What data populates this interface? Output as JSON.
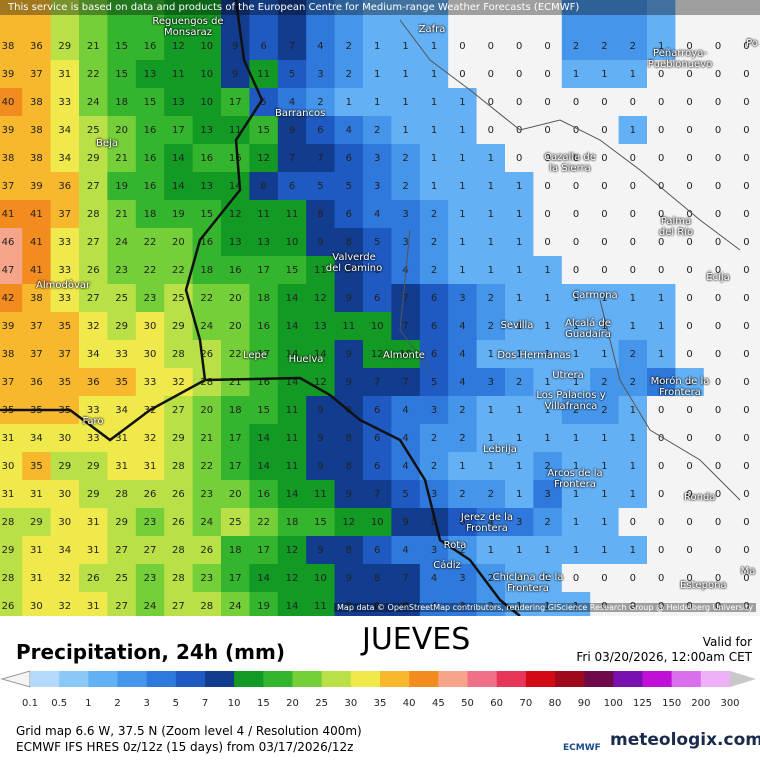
{
  "header": {
    "banner": "This service is based on data and products of the European Centre for Medium-range Weather Forecasts (ECMWF)",
    "attribution": "Map data © OpenStreetMap contributors, rendering GIScience Research Group @ Heidelberg University"
  },
  "map": {
    "places": [
      "Reguengos de Monsaraz",
      "Zafra",
      "Peñarroya-Pueblonuevo",
      "Po",
      "Barrancos",
      "Beja",
      "Cazalla de la Sierra",
      "Palma del Río",
      "Écija",
      "Valverde del Camino",
      "Almodôvar",
      "Carmona",
      "Sevilla",
      "Alcalá de Guadaíra",
      "Dos Hermanas",
      "Lepe",
      "Huelva",
      "Almonte",
      "Utrera",
      "Morón de la Frontera",
      "Los Palacios y Villafranca",
      "Faro",
      "Lebrija",
      "Arcos de la Frontera",
      "Ronda",
      "Jerez de la Frontera",
      "Rota",
      "Cádiz",
      "Chiclana de la Frontera",
      "Estepona",
      "Ma"
    ],
    "grid": [
      [
        38,
        36,
        29,
        21,
        15,
        16,
        12,
        10,
        9,
        6,
        7,
        4,
        2,
        1,
        1,
        1,
        0,
        0,
        0,
        0,
        2,
        2,
        2,
        1,
        0,
        0,
        0
      ],
      [
        39,
        37,
        31,
        22,
        15,
        13,
        11,
        10,
        9,
        11,
        5,
        3,
        2,
        1,
        1,
        1,
        0,
        0,
        0,
        0,
        1,
        1,
        1,
        0,
        0,
        0,
        0
      ],
      [
        40,
        38,
        33,
        24,
        18,
        15,
        13,
        10,
        17,
        5,
        4,
        2,
        1,
        1,
        1,
        1,
        1,
        0,
        0,
        0,
        0,
        0,
        0,
        0,
        0,
        0,
        0
      ],
      [
        39,
        38,
        34,
        25,
        20,
        16,
        17,
        13,
        11,
        15,
        9,
        6,
        4,
        2,
        1,
        1,
        1,
        0,
        0,
        0,
        0,
        0,
        1,
        0,
        0,
        0,
        0
      ],
      [
        38,
        38,
        34,
        29,
        21,
        16,
        14,
        16,
        16,
        12,
        7,
        7,
        6,
        3,
        2,
        1,
        1,
        1,
        0,
        0,
        0,
        0,
        0,
        0,
        0,
        0,
        0
      ],
      [
        37,
        39,
        36,
        27,
        19,
        16,
        14,
        13,
        14,
        8,
        6,
        5,
        5,
        3,
        2,
        1,
        1,
        1,
        1,
        0,
        0,
        0,
        0,
        0,
        0,
        0,
        0
      ],
      [
        41,
        41,
        37,
        28,
        21,
        18,
        19,
        15,
        12,
        11,
        11,
        8,
        6,
        4,
        3,
        2,
        1,
        1,
        1,
        0,
        0,
        0,
        0,
        0,
        0,
        0,
        0
      ],
      [
        46,
        41,
        33,
        27,
        24,
        22,
        20,
        16,
        13,
        13,
        10,
        9,
        8,
        5,
        3,
        2,
        1,
        1,
        1,
        0,
        0,
        0,
        0,
        0,
        0,
        0,
        0
      ],
      [
        47,
        41,
        33,
        26,
        23,
        22,
        22,
        18,
        16,
        17,
        15,
        11,
        9,
        6,
        4,
        2,
        1,
        1,
        1,
        1,
        0,
        0,
        0,
        0,
        0,
        0,
        0
      ],
      [
        42,
        38,
        33,
        27,
        25,
        23,
        25,
        22,
        20,
        18,
        14,
        12,
        9,
        6,
        7,
        6,
        3,
        2,
        1,
        1,
        1,
        1,
        1,
        1,
        0,
        0,
        0
      ],
      [
        39,
        37,
        35,
        32,
        29,
        30,
        29,
        24,
        20,
        16,
        14,
        13,
        11,
        10,
        7,
        6,
        4,
        2,
        1,
        1,
        1,
        1,
        1,
        1,
        0,
        0,
        0
      ],
      [
        38,
        37,
        37,
        34,
        33,
        30,
        28,
        26,
        22,
        17,
        14,
        14,
        9,
        12,
        10,
        6,
        4,
        1,
        1,
        1,
        1,
        1,
        2,
        1,
        0,
        0,
        0
      ],
      [
        37,
        36,
        35,
        36,
        35,
        33,
        32,
        28,
        21,
        16,
        14,
        12,
        9,
        7,
        7,
        5,
        4,
        3,
        2,
        1,
        1,
        2,
        2,
        3,
        1,
        0,
        0
      ],
      [
        35,
        35,
        35,
        33,
        34,
        32,
        27,
        20,
        18,
        15,
        11,
        9,
        8,
        6,
        4,
        3,
        2,
        1,
        1,
        1,
        2,
        2,
        1,
        0,
        0,
        0,
        0
      ],
      [
        31,
        34,
        30,
        33,
        31,
        32,
        29,
        21,
        17,
        14,
        11,
        9,
        8,
        6,
        4,
        2,
        2,
        1,
        1,
        1,
        1,
        1,
        1,
        0,
        0,
        0,
        0
      ],
      [
        30,
        35,
        29,
        29,
        31,
        31,
        28,
        22,
        17,
        14,
        11,
        9,
        8,
        6,
        4,
        2,
        1,
        1,
        1,
        2,
        1,
        1,
        1,
        0,
        0,
        0,
        0
      ],
      [
        31,
        31,
        30,
        29,
        28,
        26,
        26,
        23,
        20,
        16,
        14,
        11,
        9,
        7,
        5,
        3,
        2,
        2,
        1,
        3,
        1,
        1,
        1,
        0,
        0,
        0,
        0
      ],
      [
        28,
        29,
        30,
        31,
        29,
        23,
        26,
        24,
        25,
        22,
        18,
        15,
        12,
        10,
        9,
        8,
        6,
        4,
        3,
        2,
        1,
        1,
        0,
        0,
        0,
        0,
        0
      ],
      [
        29,
        31,
        34,
        31,
        27,
        27,
        28,
        26,
        18,
        17,
        12,
        9,
        8,
        6,
        4,
        3,
        2,
        1,
        1,
        1,
        1,
        1,
        1,
        0,
        0,
        0,
        0
      ],
      [
        28,
        31,
        32,
        26,
        25,
        23,
        28,
        23,
        17,
        14,
        12,
        10,
        9,
        8,
        7,
        4,
        3,
        2,
        1,
        1,
        0,
        0,
        0,
        0,
        0,
        0,
        0
      ],
      [
        26,
        30,
        32,
        31,
        27,
        24,
        27,
        28,
        24,
        19,
        14,
        11,
        9,
        8,
        8,
        4,
        3,
        2,
        1,
        1,
        1,
        0,
        0,
        0,
        0,
        0,
        0
      ]
    ]
  },
  "day": "JUEVES",
  "valid_label": "Valid for",
  "valid_time": "Fri 03/20/2026, 12:00am CET",
  "legend": {
    "title": "Precipitation, 24h (mm)",
    "thresholds": [
      0.1,
      0.5,
      1,
      2,
      3,
      5,
      7,
      10,
      15,
      20,
      25,
      30,
      35,
      40,
      45,
      50,
      60,
      70,
      80,
      90,
      100,
      125,
      150,
      200,
      300
    ],
    "colors": [
      "#b3dafc",
      "#8cc7fa",
      "#64b0f4",
      "#4596ea",
      "#3079dc",
      "#1e5ac2",
      "#123c8e",
      "#139a24",
      "#35b52d",
      "#74cf38",
      "#b9e046",
      "#f0e94c",
      "#f7b82e",
      "#f28c1f",
      "#f6a58a",
      "#f0708a",
      "#e8355a",
      "#d20a16",
      "#9e0a1c",
      "#6e0a4a",
      "#7a10b0",
      "#c010d8",
      "#d870ec",
      "#eeb0f6",
      "#c8c8c8"
    ],
    "under_color": "#f4f4f4"
  },
  "footer": {
    "grid_info": "Grid map 6.6 W, 37.5 N (Zoom level 4 / Resolution 400m)",
    "model_info": "ECMWF IFS HRES 0z/12z (15 days) from 03/17/2026/12z",
    "ecmwf": "ECMWF",
    "brand": "meteologix.com"
  }
}
